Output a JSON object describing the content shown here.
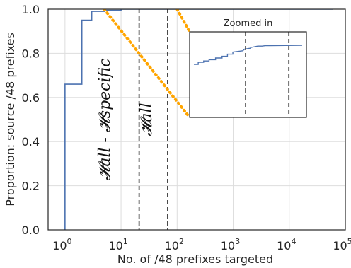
{
  "chart_data": {
    "type": "line",
    "xlabel": "No. of /48 prefixes targeted",
    "ylabel": "Proportion: source /48 prefixes",
    "xscale": "log",
    "xlim": [
      0.5,
      100000
    ],
    "ylim": [
      0,
      1
    ],
    "grid": true,
    "xticks": [
      {
        "value": 1,
        "base": "10",
        "exp": "0"
      },
      {
        "value": 10,
        "base": "10",
        "exp": "1"
      },
      {
        "value": 100,
        "base": "10",
        "exp": "2"
      },
      {
        "value": 1000,
        "base": "10",
        "exp": "3"
      },
      {
        "value": 10000,
        "base": "10",
        "exp": "4"
      },
      {
        "value": 100000,
        "base": "10",
        "exp": "5"
      }
    ],
    "yticks": [
      {
        "value": 0.0,
        "label": "0.0"
      },
      {
        "value": 0.2,
        "label": "0.2"
      },
      {
        "value": 0.4,
        "label": "0.4"
      },
      {
        "value": 0.6,
        "label": "0.6"
      },
      {
        "value": 0.8,
        "label": "0.8"
      },
      {
        "value": 1.0,
        "label": "1.0"
      }
    ],
    "series": [
      {
        "color": "#4c72b0",
        "step": true,
        "points": [
          [
            1,
            0
          ],
          [
            1,
            0.66
          ],
          [
            2,
            0.66
          ],
          [
            2,
            0.95
          ],
          [
            3,
            0.95
          ],
          [
            3,
            0.99
          ],
          [
            5,
            0.99
          ],
          [
            5,
            0.995
          ],
          [
            10,
            0.995
          ],
          [
            10,
            1.0
          ],
          [
            60000,
            1.0
          ]
        ]
      }
    ],
    "vlines": [
      {
        "x": 21,
        "color": "#111111",
        "style": "dashed",
        "label": "𝓗all - 𝓗specific"
      },
      {
        "x": 68,
        "color": "#111111",
        "style": "dashed",
        "label": "𝓗all"
      }
    ],
    "inset": {
      "title": "Zoomed in",
      "source_region": {
        "x": [
          5,
          100
        ],
        "y": [
          0.99,
          1.0
        ]
      },
      "series_color": "#4c72b0",
      "connector_color": "#ffa500",
      "curve": [
        [
          0.0,
          0.0
        ],
        [
          0.04,
          0.0
        ],
        [
          0.04,
          0.05
        ],
        [
          0.09,
          0.05
        ],
        [
          0.09,
          0.08
        ],
        [
          0.14,
          0.08
        ],
        [
          0.14,
          0.11
        ],
        [
          0.2,
          0.11
        ],
        [
          0.2,
          0.15
        ],
        [
          0.26,
          0.15
        ],
        [
          0.26,
          0.19
        ],
        [
          0.31,
          0.19
        ],
        [
          0.31,
          0.24
        ],
        [
          0.36,
          0.24
        ],
        [
          0.36,
          0.29
        ],
        [
          0.45,
          0.32
        ],
        [
          0.47,
          0.36
        ],
        [
          0.52,
          0.38
        ],
        [
          0.53,
          0.4
        ],
        [
          0.59,
          0.43
        ],
        [
          0.63,
          0.43
        ],
        [
          0.66,
          0.44
        ],
        [
          1.0,
          0.45
        ]
      ],
      "vline_fractions": [
        0.48,
        0.85
      ]
    }
  }
}
